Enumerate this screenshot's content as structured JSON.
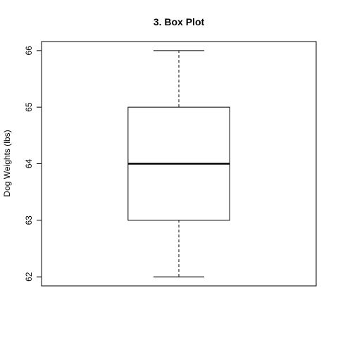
{
  "chart_data": {
    "type": "boxplot",
    "title": "3. Box Plot",
    "xlabel": "",
    "ylabel": "Dog Weights (lbs)",
    "ylim": [
      61.84,
      66.16
    ],
    "yticks": [
      62,
      63,
      64,
      65,
      66
    ],
    "grid": false,
    "legend": "none",
    "series": [
      {
        "min": 62,
        "q1": 63,
        "median": 64,
        "q3": 65,
        "max": 66
      }
    ],
    "colors": {
      "box_fill": "#ffffff",
      "stroke": "#000000"
    }
  }
}
